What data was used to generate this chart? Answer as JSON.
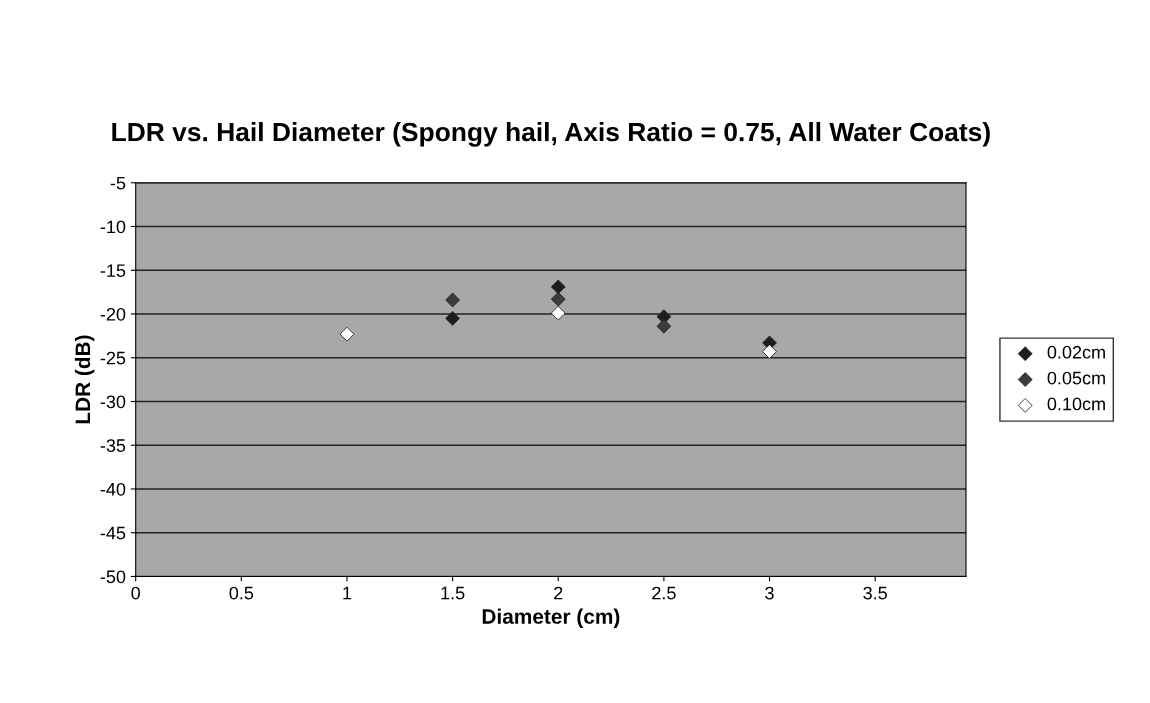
{
  "chart_data": {
    "type": "scatter",
    "title": "LDR vs. Hail Diameter (Spongy hail, Axis Ratio = 0.75, All Water Coats)",
    "xlabel": "Diameter (cm)",
    "ylabel": "LDR (dB)",
    "x": [
      1,
      1.5,
      2,
      2.5,
      3
    ],
    "series": [
      {
        "name": "0.02cm",
        "color": "#1e1e1e",
        "values": [
          null,
          -20.5,
          -16.9,
          -20.3,
          -23.3
        ]
      },
      {
        "name": "0.05cm",
        "color": "#3c3c3c",
        "values": [
          null,
          -18.4,
          -18.3,
          -21.4,
          null
        ]
      },
      {
        "name": "0.10cm",
        "color": "#ffffff",
        "values": [
          -22.3,
          null,
          -19.9,
          null,
          -24.3
        ]
      }
    ],
    "xlim": [
      0,
      3.93
    ],
    "xticks": [
      0,
      0.5,
      1,
      1.5,
      2,
      2.5,
      3,
      3.5
    ],
    "ylim": [
      -50,
      -5
    ],
    "yticks": [
      -50,
      -45,
      -40,
      -35,
      -30,
      -25,
      -20,
      -15,
      -10,
      -5
    ],
    "grid": "y",
    "legend": "right",
    "marker": "diamond"
  }
}
